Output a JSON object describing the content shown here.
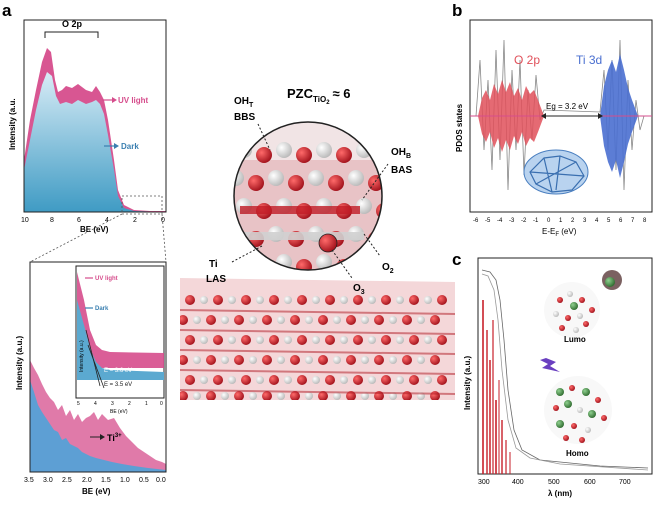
{
  "panels": {
    "a": {
      "label": "a",
      "top_plot": {
        "ylabel": "Intensity (a.u.",
        "xlabel": "BE (eV)",
        "bracket_label": "O 2p",
        "xticks": [
          "10",
          "8",
          "6",
          "4",
          "2",
          "0"
        ],
        "legend_uv": "UV light",
        "legend_dark": "Dark"
      },
      "bottom_plot": {
        "ylabel": "Intensity (a.u.)",
        "xlabel": "BE (eV)",
        "xticks": [
          "3.5",
          "3.0",
          "2.5",
          "2.0",
          "1.5",
          "1.0",
          "0.5",
          "0.0"
        ],
        "annotation_ti3": "Ti",
        "annotation_ti3_sup": "3+",
        "inset": {
          "ylabel": "Intensity (a.u.)",
          "xlabel": "BE (eV)",
          "xticks": [
            "5",
            "4",
            "3",
            "2",
            "1",
            "0"
          ],
          "legend_uv": "UV light",
          "legend_dark": "Dark",
          "edge_uv": "E = 3.6 eV",
          "edge_dark": "E = 3.5 eV"
        }
      }
    },
    "structure": {
      "pzc_main": "PZC",
      "pzc_sub": "TiO",
      "pzc_sub2": "2",
      "pzc_value": "≈ 6",
      "oh_t": "OH",
      "oh_t_sub": "T",
      "bbs": "BBS",
      "oh_b": "OH",
      "oh_b_sub": "B",
      "bas": "BAS",
      "ti": "Ti",
      "las": "LAS",
      "o2": "O",
      "o2_sub": "2",
      "o3": "O",
      "o3_sub": "3"
    },
    "b": {
      "label": "b",
      "ylabel": "PDOS states",
      "xlabel": "E-E",
      "xlabel_sub": "F",
      "xlabel_unit": " (eV)",
      "legend_o2p": "O 2p",
      "legend_ti3d": "Ti 3d",
      "gap_label": "Eg = 3.2 eV",
      "xticks": [
        "-6",
        "-5",
        "-4",
        "-3",
        "-2",
        "-1",
        "0",
        "1",
        "2",
        "3",
        "4",
        "5",
        "6",
        "7",
        "8"
      ],
      "colors": {
        "o2p": "#e0505a",
        "ti3d": "#4a6fd0"
      }
    },
    "c": {
      "label": "c",
      "ylabel": "Intensity (a.u.)",
      "xlabel": "λ (nm)",
      "xticks": [
        "300",
        "400",
        "500",
        "600",
        "700"
      ],
      "lumo": "Lumo",
      "homo": "Homo"
    }
  },
  "colors": {
    "uv_fill": "#d64d8c",
    "dark_fill": "#5ba9d0",
    "ox_red": "#c8202a"
  }
}
